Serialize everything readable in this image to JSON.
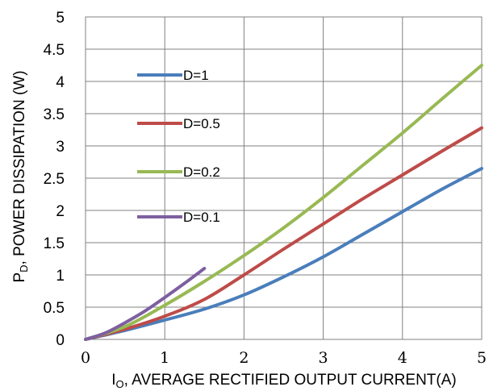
{
  "chart_data": {
    "type": "line",
    "xlabel_main": "I",
    "xlabel_sub": "O",
    "xlabel_rest": ", AVERAGE RECTIFIED OUTPUT CURRENT(A)",
    "ylabel_main": "P",
    "ylabel_sub": "D",
    "ylabel_rest": ", POWER DISSIPATION (W)",
    "xlim": [
      0,
      5
    ],
    "ylim": [
      0,
      5
    ],
    "xticks": [
      "0",
      "1",
      "2",
      "3",
      "4",
      "5"
    ],
    "yticks": [
      "0",
      "0.5",
      "1",
      "1.5",
      "2",
      "2.5",
      "3",
      "3.5",
      "4",
      "4.5",
      "5"
    ],
    "grid": true,
    "legend_position": "top-left",
    "series": [
      {
        "name": "D=1",
        "color": "#4a7ebb",
        "points": [
          [
            0,
            0
          ],
          [
            0.5,
            0.14
          ],
          [
            1,
            0.3
          ],
          [
            1.5,
            0.47
          ],
          [
            2,
            0.69
          ],
          [
            2.5,
            0.97
          ],
          [
            3,
            1.28
          ],
          [
            3.5,
            1.63
          ],
          [
            4,
            1.98
          ],
          [
            4.5,
            2.33
          ],
          [
            5,
            2.65
          ]
        ]
      },
      {
        "name": "D=0.5",
        "color": "#be4b48",
        "points": [
          [
            0,
            0
          ],
          [
            0.5,
            0.16
          ],
          [
            1,
            0.36
          ],
          [
            1.5,
            0.62
          ],
          [
            2,
            1.0
          ],
          [
            2.5,
            1.4
          ],
          [
            3,
            1.79
          ],
          [
            3.5,
            2.18
          ],
          [
            4,
            2.55
          ],
          [
            4.5,
            2.92
          ],
          [
            5,
            3.28
          ]
        ]
      },
      {
        "name": "D=0.2",
        "color": "#98b954",
        "points": [
          [
            0,
            0
          ],
          [
            0.5,
            0.2
          ],
          [
            1,
            0.53
          ],
          [
            1.5,
            0.9
          ],
          [
            2,
            1.3
          ],
          [
            2.5,
            1.73
          ],
          [
            3,
            2.2
          ],
          [
            3.5,
            2.7
          ],
          [
            4,
            3.2
          ],
          [
            4.5,
            3.73
          ],
          [
            5,
            4.25
          ]
        ]
      },
      {
        "name": "D=0.1",
        "color": "#7d5fa0",
        "points": [
          [
            0,
            0
          ],
          [
            0.25,
            0.1
          ],
          [
            0.5,
            0.26
          ],
          [
            0.75,
            0.44
          ],
          [
            1,
            0.65
          ],
          [
            1.25,
            0.87
          ],
          [
            1.5,
            1.1
          ]
        ]
      }
    ]
  }
}
